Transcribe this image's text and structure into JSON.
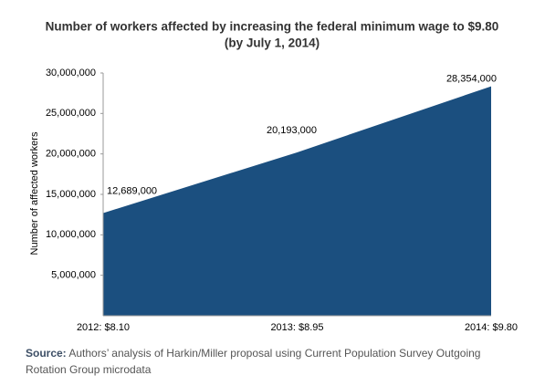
{
  "chart_data": {
    "type": "area",
    "title": "Number of workers affected by increasing the federal minimum wage to $9.80",
    "subtitle": "(by July 1, 2014)",
    "y_label": "Number of affected workers",
    "categories": [
      "2012: $8.10",
      "2013: $8.95",
      "2014: $9.80"
    ],
    "values": [
      12689000,
      20193000,
      28354000
    ],
    "value_labels": [
      "12,689,000",
      "20,193,000",
      "28,354,000"
    ],
    "color": "#1b4f7f",
    "ylim": [
      0,
      30000000
    ],
    "yticks": [
      {
        "value": 5000000,
        "label": "5,000,000"
      },
      {
        "value": 10000000,
        "label": "10,000,000"
      },
      {
        "value": 15000000,
        "label": "15,000,000"
      },
      {
        "value": 20000000,
        "label": "20,000,000"
      },
      {
        "value": 25000000,
        "label": "25,000,000"
      },
      {
        "value": 30000000,
        "label": "30,000,000"
      }
    ],
    "source_label": "Source:",
    "source": "Authors’ analysis of Harkin/Miller proposal using Current Population Survey Outgoing Rotation Group microdata"
  }
}
